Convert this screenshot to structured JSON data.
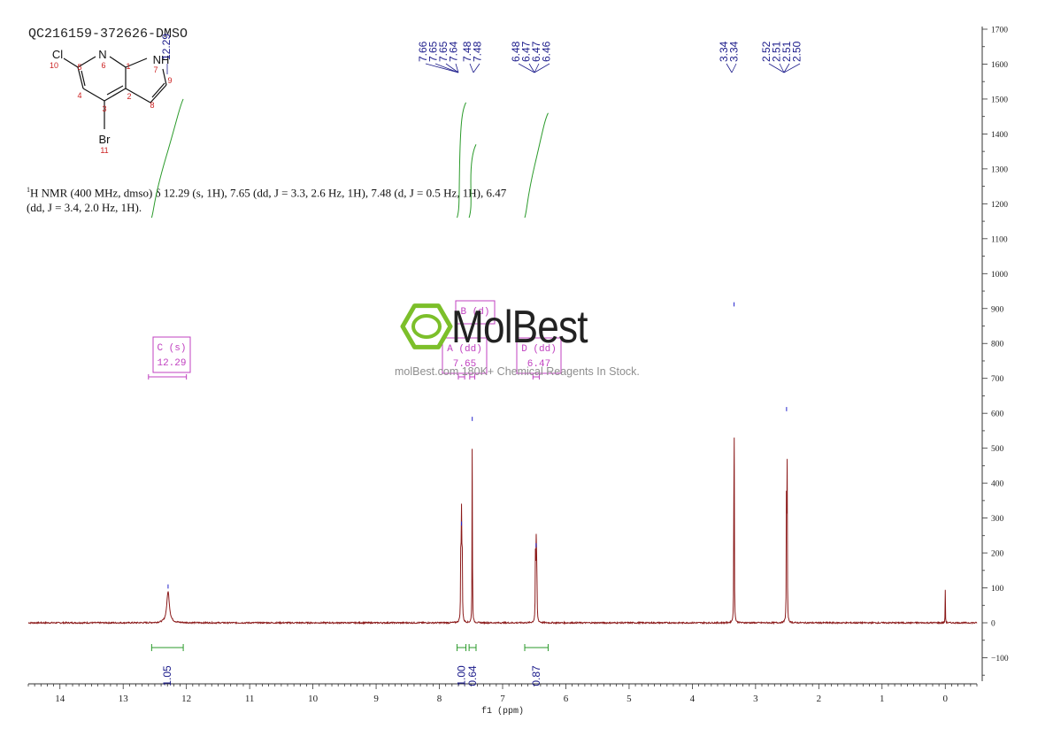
{
  "sample_id": "QC216159-372626-DMSO",
  "nmr_description": {
    "superscript": "1",
    "line1": "H NMR (400 MHz, dmso) δ 12.29 (s, 1H), 7.65 (dd, J = 3.3, 2.6 Hz, 1H), 7.48 (d, J = 0.5 Hz, 1H), 6.47",
    "line2": "(dd, J = 3.4, 2.0 Hz, 1H)."
  },
  "structure": {
    "atoms": [
      "Cl",
      "N",
      "NH",
      "Br"
    ],
    "numbers": [
      "1",
      "2",
      "3",
      "4",
      "5",
      "6",
      "7",
      "8",
      "9",
      "10",
      "11"
    ]
  },
  "watermark": {
    "brand": "MolBest",
    "tagline": "molBest.com 180K+ Chemical Reagents In Stock."
  },
  "colors": {
    "spectrum": "#8b1a1a",
    "integral": "#2a9a2a",
    "peak_label": "#1a1a8a",
    "multiplet_box": "#c040c0",
    "logo_green": "#7cbf2a"
  },
  "chart_data": {
    "type": "line",
    "title": "",
    "xlabel": "f1 (ppm)",
    "ylabel": "",
    "xlim": [
      14.5,
      -0.5
    ],
    "ylim": [
      -170,
      1700
    ],
    "x_axis_reversed": true,
    "x_ticks": [
      "14",
      "13",
      "12",
      "11",
      "10",
      "9",
      "8",
      "7",
      "6",
      "5",
      "4",
      "3",
      "2",
      "1",
      "0"
    ],
    "y_ticks": [
      "1700",
      "1600",
      "1500",
      "1400",
      "1300",
      "1200",
      "1100",
      "1000",
      "900",
      "800",
      "700",
      "600",
      "500",
      "400",
      "300",
      "200",
      "100",
      "0",
      "-100"
    ],
    "y_axis_position": "right",
    "peaks": [
      {
        "ppm": 12.29,
        "height": 90,
        "width": 0.05
      },
      {
        "ppm": 7.66,
        "height": 255,
        "width": 0.008
      },
      {
        "ppm": 7.65,
        "height": 270,
        "width": 0.008
      },
      {
        "ppm": 7.64,
        "height": 255,
        "width": 0.008
      },
      {
        "ppm": 7.48,
        "height": 575,
        "width": 0.006
      },
      {
        "ppm": 7.48,
        "height": 10,
        "width": 0.006
      },
      {
        "ppm": 6.48,
        "height": 200,
        "width": 0.008
      },
      {
        "ppm": 6.47,
        "height": 215,
        "width": 0.008
      },
      {
        "ppm": 6.46,
        "height": 200,
        "width": 0.008
      },
      {
        "ppm": 3.34,
        "height": 900,
        "width": 0.006
      },
      {
        "ppm": 2.51,
        "height": 600,
        "width": 0.006
      },
      {
        "ppm": 2.5,
        "height": 420,
        "width": 0.006
      },
      {
        "ppm": 0.0,
        "height": 95,
        "width": 0.005
      }
    ],
    "peak_labels": {
      "group_12": [
        "12.29"
      ],
      "group_aromatic": [
        "7.66",
        "7.65",
        "7.65",
        "7.64",
        "7.48",
        "7.48",
        "6.48",
        "6.47",
        "6.47",
        "6.46"
      ],
      "group_solvent": [
        "3.34",
        "3.34",
        "2.52",
        "2.51",
        "2.51",
        "2.50"
      ]
    },
    "integrals": [
      {
        "from": 12.55,
        "to": 12.05,
        "value": "1.05",
        "curve_top": 1500,
        "curve_bottom": 1160
      },
      {
        "from": 7.72,
        "to": 7.58,
        "value": "1.00",
        "curve_top": 1490,
        "curve_bottom": 1160
      },
      {
        "from": 7.53,
        "to": 7.42,
        "value": "0.64",
        "curve_top": 1370,
        "curve_bottom": 1160
      },
      {
        "from": 6.65,
        "to": 6.28,
        "value": "0.87",
        "curve_top": 1460,
        "curve_bottom": 1160
      }
    ],
    "multiplets": [
      {
        "label": "C (s)",
        "value": "12.29",
        "center": 12.29,
        "range": [
          12.6,
          12.0
        ],
        "box_y": 790
      },
      {
        "label": "B (d)",
        "value": "7.48",
        "center": 7.48,
        "range": [
          7.52,
          7.44
        ],
        "box_y": 870
      },
      {
        "label": "A (dd)",
        "value": "7.65",
        "center": 7.65,
        "range": [
          7.7,
          7.6
        ],
        "box_y": 790
      },
      {
        "label": "D (dd)",
        "value": "6.47",
        "center": 6.47,
        "range": [
          6.52,
          6.42
        ],
        "box_y": 790
      }
    ]
  }
}
